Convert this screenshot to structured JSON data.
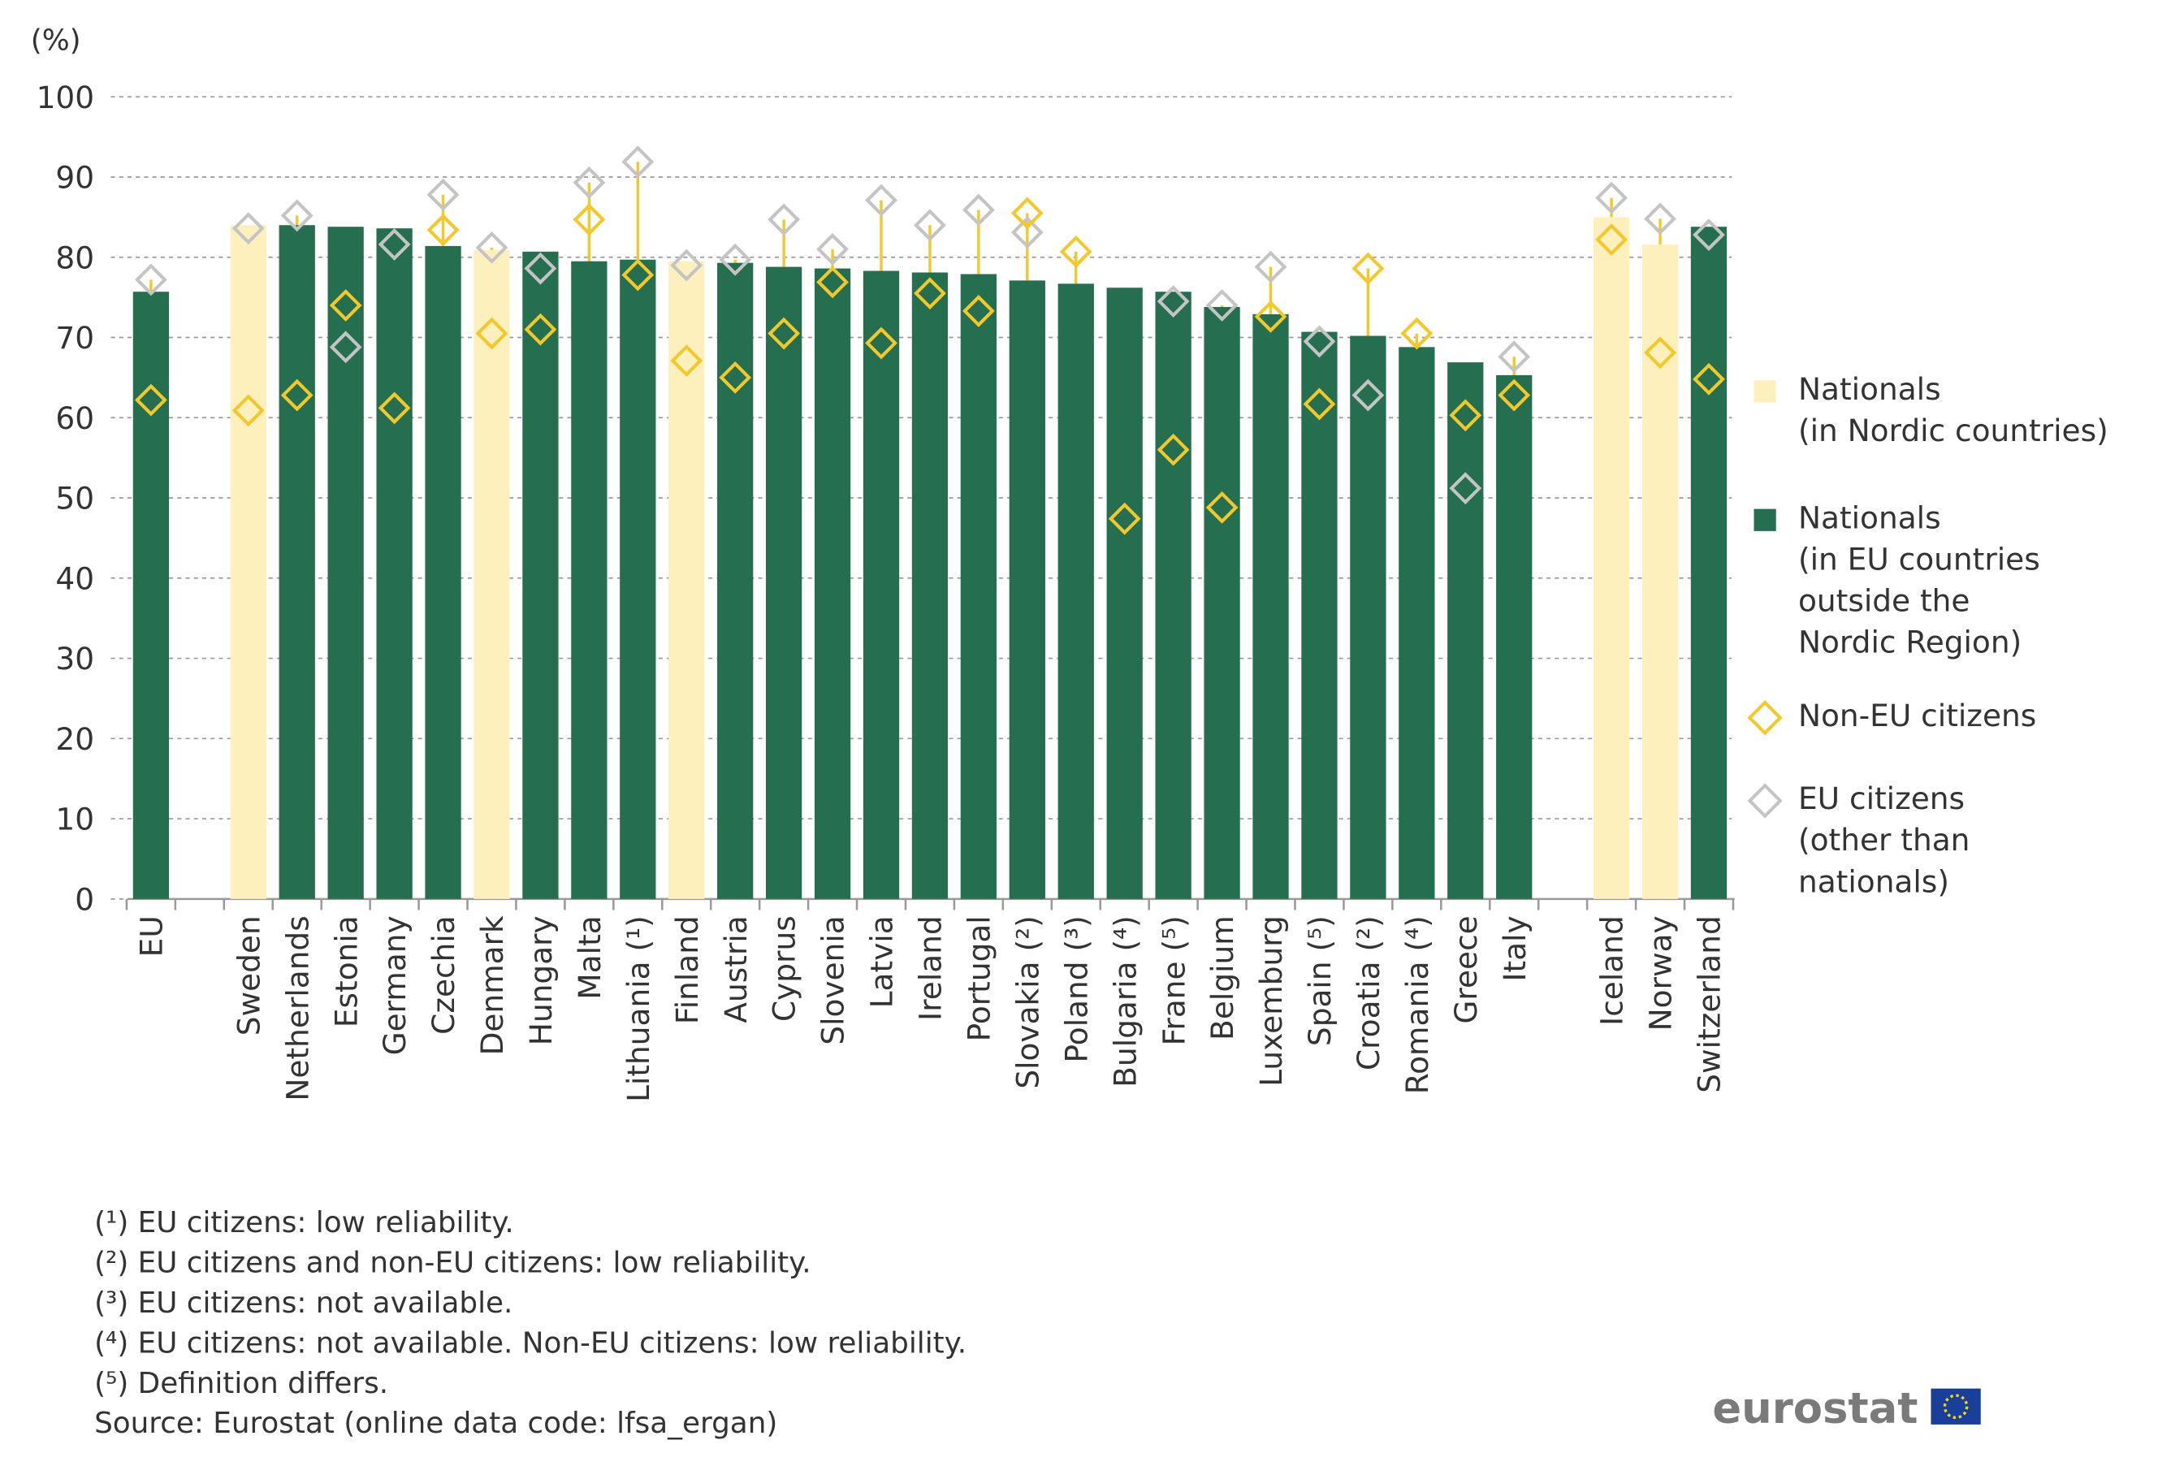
{
  "chart_data": {
    "type": "bar",
    "y_axis_label": "(%)",
    "categories": [
      "EU",
      null,
      "Sweden",
      "Netherlands",
      "Estonia",
      "Germany",
      "Czechia",
      "Denmark",
      "Hungary",
      "Malta",
      "Lithuania (¹)",
      "Finland",
      "Austria",
      "Cyprus",
      "Slovenia",
      "Latvia",
      "Ireland",
      "Portugal",
      "Slovakia (²)",
      "Poland (³)",
      "Bulgaria (⁴)",
      "Frane (⁵)",
      "Belgium",
      "Luxemburg",
      "Spain (⁵)",
      "Croatia (²)",
      "Romania (⁴)",
      "Greece",
      "Italy",
      null,
      "Iceland",
      "Norway",
      "Switzerland"
    ],
    "series": [
      {
        "name": "Nationals\n(in Nordic countries)",
        "color": "#fdf0bd",
        "mark": "bar",
        "values": [
          null,
          null,
          84.0,
          null,
          null,
          null,
          null,
          80.9,
          null,
          null,
          null,
          79.5,
          null,
          null,
          null,
          null,
          null,
          null,
          null,
          null,
          null,
          null,
          null,
          null,
          null,
          null,
          null,
          null,
          null,
          null,
          85.0,
          81.6,
          null
        ]
      },
      {
        "name": "Nationals\n(in EU countries\noutside the\nNordic Region)",
        "color": "#266e50",
        "mark": "bar",
        "values": [
          75.7,
          null,
          null,
          84.0,
          83.8,
          83.6,
          81.4,
          null,
          80.7,
          79.5,
          79.7,
          null,
          79.3,
          78.8,
          78.6,
          78.3,
          78.1,
          77.9,
          77.1,
          76.7,
          76.2,
          75.7,
          73.8,
          72.9,
          70.7,
          70.2,
          68.8,
          66.9,
          65.3,
          null,
          null,
          null,
          83.8
        ]
      },
      {
        "name": "Non-EU citizens",
        "color": "#f2c82a",
        "mark": "diamond",
        "values": [
          62.2,
          null,
          60.9,
          62.8,
          74.0,
          61.2,
          83.4,
          70.5,
          71.0,
          84.7,
          77.8,
          67.1,
          65.0,
          70.5,
          76.9,
          69.3,
          75.5,
          73.3,
          85.5,
          80.7,
          47.4,
          56.0,
          48.8,
          72.6,
          61.7,
          78.6,
          70.5,
          60.3,
          62.8,
          null,
          82.2,
          68.1,
          64.8
        ]
      },
      {
        "name": "EU citizens\n(other than\nnationals)",
        "color": "#c4c4c4",
        "mark": "diamond",
        "values": [
          77.2,
          null,
          83.6,
          85.2,
          68.8,
          81.6,
          87.8,
          81.2,
          78.6,
          89.3,
          91.9,
          79.0,
          79.7,
          84.7,
          81.0,
          87.1,
          84.0,
          85.9,
          83.1,
          null,
          null,
          74.5,
          74.0,
          78.8,
          69.5,
          62.8,
          null,
          51.2,
          67.6,
          null,
          87.4,
          84.8,
          82.8
        ]
      }
    ],
    "connector_color": "#f2c82a",
    "ylim": [
      0,
      100
    ],
    "yticks": [
      0,
      10,
      20,
      30,
      40,
      50,
      60,
      70,
      80,
      90,
      100
    ],
    "grid": true,
    "legend": "right",
    "notes": [
      "(¹) EU citizens: low reliability.",
      "(²) EU citizens and non-EU citizens: low reliability.",
      "(³) EU citizens: not available.",
      "(⁴) EU citizens: not available. Non-EU citizens: low reliability.",
      "(⁵) Definition differs."
    ],
    "source": "Source: Eurostat (online data code: lfsa_ergan)",
    "logo": "eurostat"
  }
}
